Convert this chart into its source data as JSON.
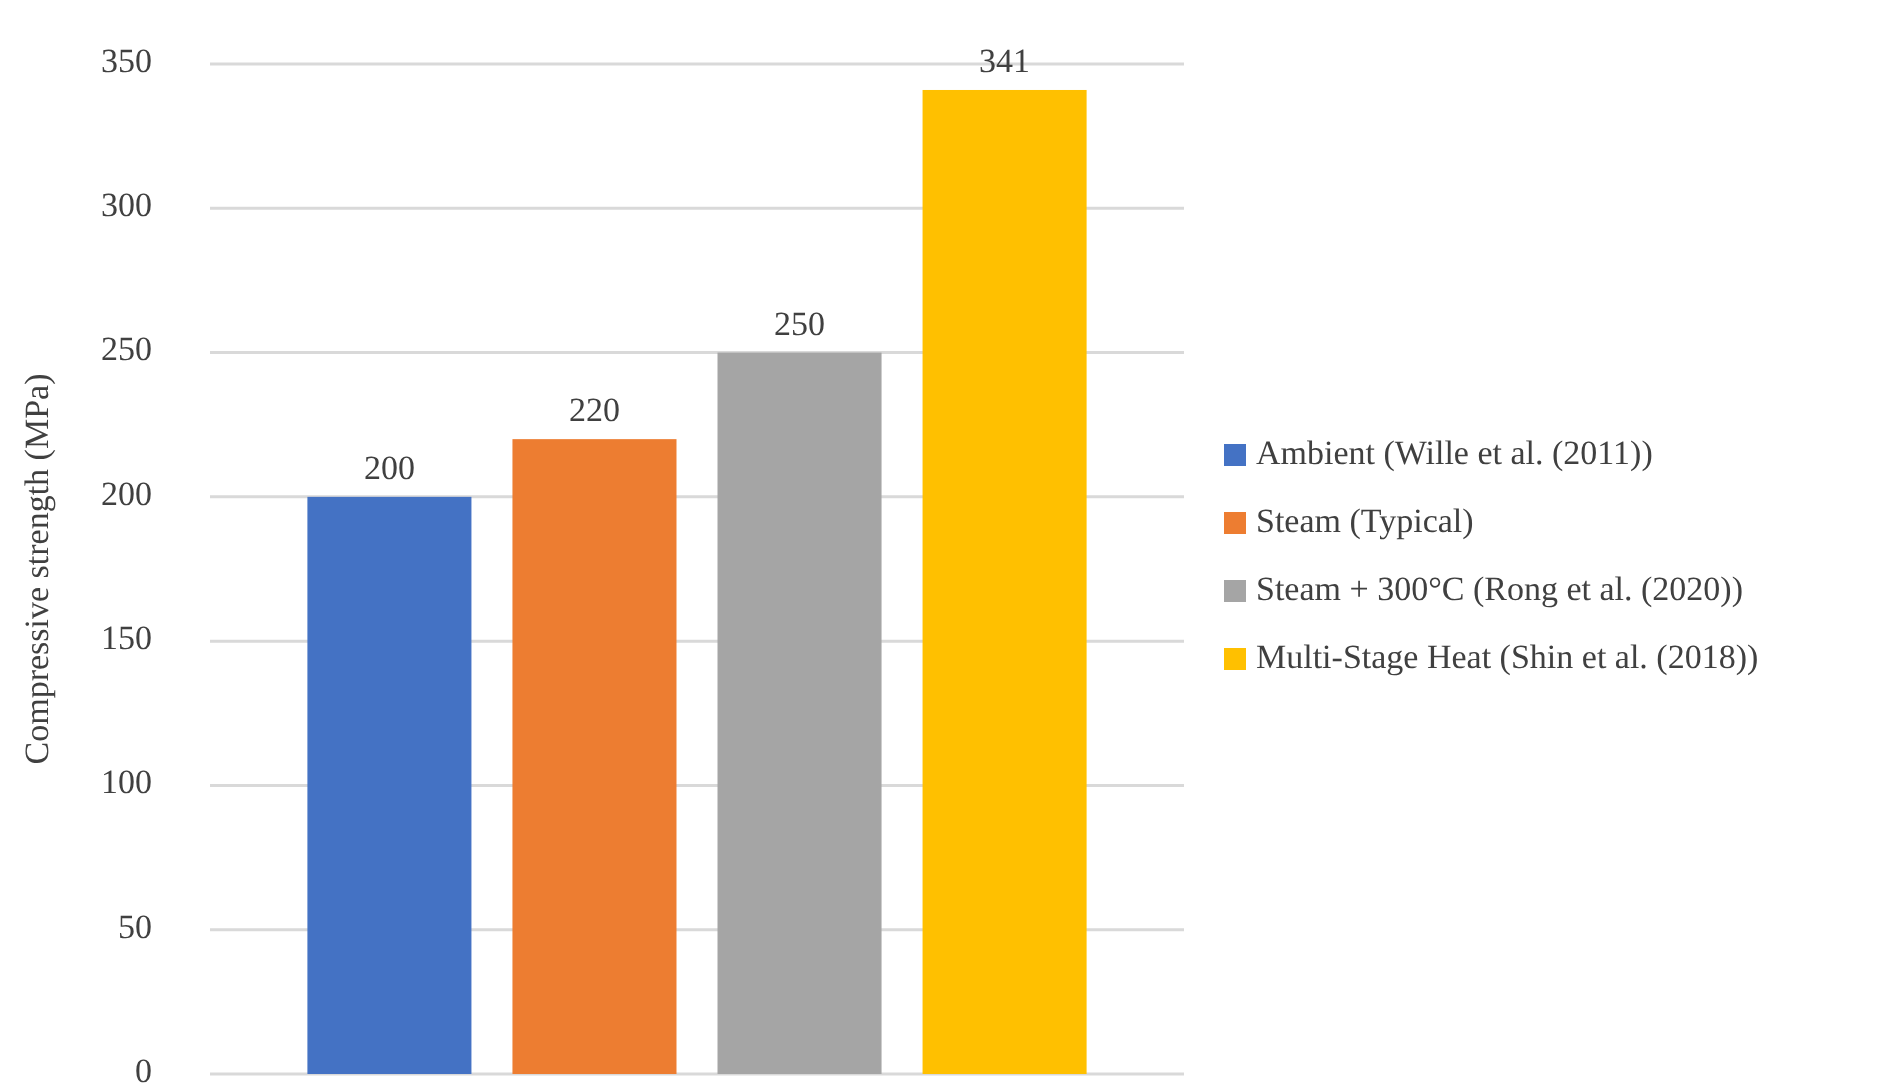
{
  "chart_data": {
    "type": "bar",
    "ylabel": "Compressive strength (MPa)",
    "categories": [
      null
    ],
    "series": [
      {
        "name": "Ambient (Wille et al. (2011))",
        "color": "#4472c4",
        "values": [
          200
        ]
      },
      {
        "name": "Steam (Typical)",
        "color": "#ed7d31",
        "values": [
          220
        ]
      },
      {
        "name": "Steam + 300°C (Rong et al. (2020))",
        "color": "#a5a5a5",
        "values": [
          250
        ]
      },
      {
        "name": "Multi-Stage Heat (Shin et al. (2018))",
        "color": "#ffc000",
        "values": [
          341
        ]
      }
    ],
    "ylim": [
      0,
      350
    ],
    "yticks": [
      0,
      50,
      100,
      150,
      200,
      250,
      300,
      350
    ],
    "grid": "y",
    "legend": "right",
    "data_labels": true
  }
}
